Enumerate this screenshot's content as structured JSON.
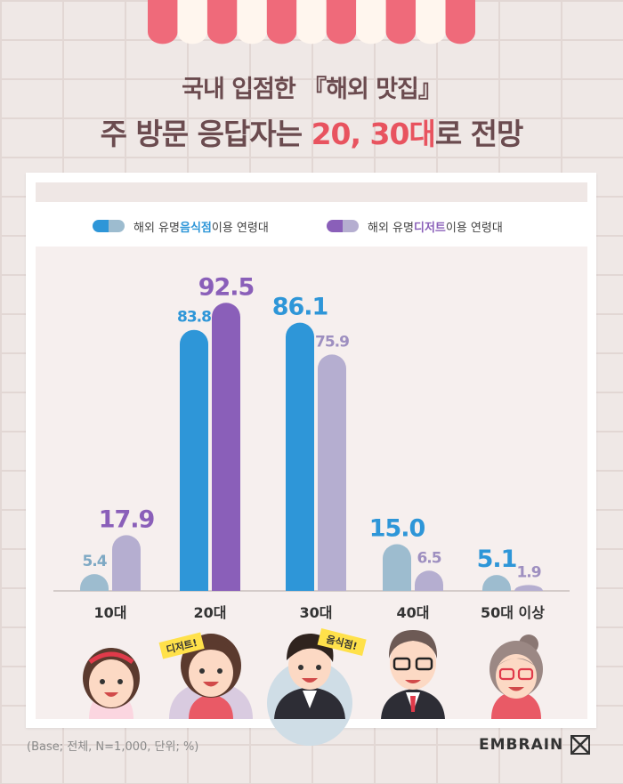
{
  "title": {
    "line1": "국내 입점한 『해외 맛집』",
    "line2_pre": "주 방문 응답자는 ",
    "line2_highlight": "20, 30대",
    "line2_post": "로 전망"
  },
  "legend": [
    {
      "pre": "해외 유명 ",
      "highlight": "음식점",
      "post": " 이용 연령대"
    },
    {
      "pre": "해외 유명 ",
      "highlight": "디저트",
      "post": " 이용 연령대"
    }
  ],
  "tags": {
    "dessert": "디저트!",
    "restaurant": "음식점!"
  },
  "footnote": "(Base; 전체, N=1,000, 단위; %)",
  "brand": "EMBRAIN",
  "colors": {
    "restaurant": "#2e96d8",
    "dessert": "#8a5fb9",
    "restaurant_light": "#9dbccf",
    "dessert_light": "#b5aed0",
    "accent": "#e8535f",
    "title": "#6b4b4f"
  },
  "chart_data": {
    "type": "bar",
    "categories": [
      "10대",
      "20대",
      "30대",
      "40대",
      "50대 이상"
    ],
    "series": [
      {
        "name": "해외 유명 음식점 이용 연령대",
        "values": [
          5.4,
          83.8,
          86.1,
          15.0,
          5.1
        ],
        "labels": [
          "5.4",
          "83.8",
          "86.1",
          "15.0",
          "5.1"
        ]
      },
      {
        "name": "해외 유명 디저트 이용 연령대",
        "values": [
          17.9,
          92.5,
          75.9,
          6.5,
          1.9
        ],
        "labels": [
          "17.9",
          "92.5",
          "75.9",
          "6.5",
          "1.9"
        ]
      }
    ],
    "highlight": {
      "restaurant": [
        false,
        true,
        true,
        false,
        false
      ],
      "dessert": [
        false,
        true,
        false,
        false,
        false
      ]
    },
    "label_emphasis": {
      "restaurant": [
        false,
        false,
        true,
        true,
        true
      ],
      "dessert": [
        true,
        true,
        false,
        false,
        false
      ]
    },
    "ylim": [
      0,
      100
    ],
    "grid": false,
    "legend_position": "top"
  }
}
